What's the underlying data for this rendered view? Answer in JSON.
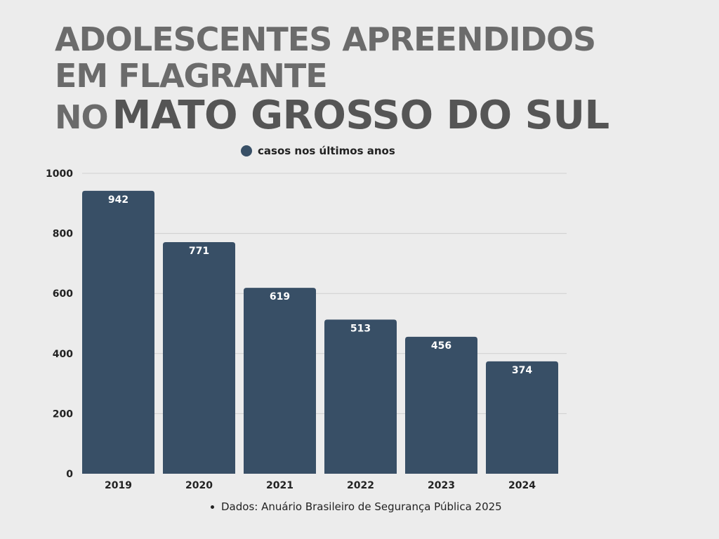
{
  "title": {
    "line1": "ADOLESCENTES APREENDIDOS",
    "line2": "EM FLAGRANTE",
    "line3_prefix": "NO",
    "line3_main": "MATO GROSSO DO SUL"
  },
  "source": "Dados: Anuário Brasileiro de Segurança Pública 2025",
  "colors": {
    "bar": "#384f66",
    "title": "#6b6b6b",
    "background": "#ececec"
  },
  "chart_data": {
    "type": "bar",
    "categories": [
      "2019",
      "2020",
      "2021",
      "2022",
      "2023",
      "2024"
    ],
    "series": [
      {
        "name": "casos nos últimos anos",
        "values": [
          942,
          771,
          619,
          513,
          456,
          374
        ]
      }
    ],
    "ylim": [
      0,
      1000
    ],
    "yticks": [
      0,
      200,
      400,
      600,
      800,
      1000
    ],
    "grid": true,
    "legend_position": "top-center",
    "data_labels": true
  }
}
